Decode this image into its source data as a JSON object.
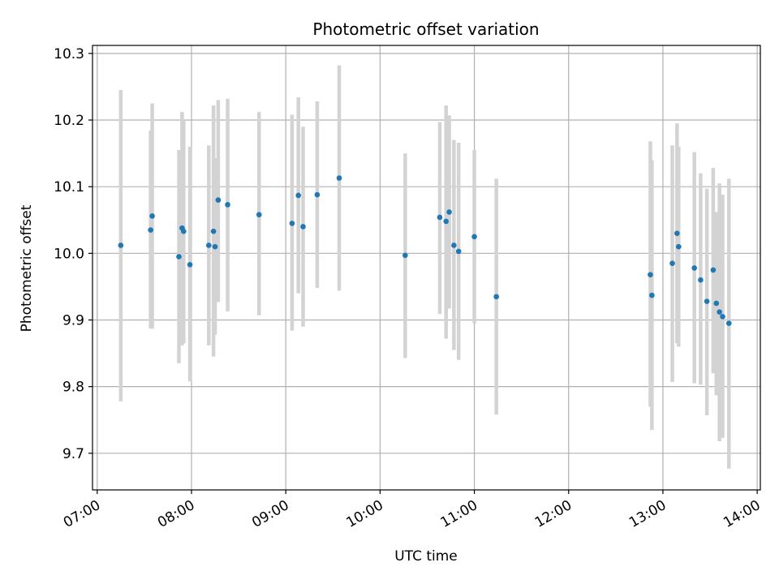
{
  "chart_data": {
    "type": "scatter",
    "title": "Photometric offset variation",
    "xlabel": "UTC time",
    "ylabel": "Photometric offset",
    "xlim": [
      "06:57",
      "14:02"
    ],
    "ylim": [
      9.645,
      10.312
    ],
    "grid": true,
    "x_tick_labels": [
      "07:00",
      "08:00",
      "09:00",
      "10:00",
      "11:00",
      "12:00",
      "13:00",
      "14:00"
    ],
    "y_tick_values": [
      9.7,
      9.8,
      9.9,
      10.0,
      10.1,
      10.2,
      10.3
    ],
    "y_tick_labels": [
      "9.7",
      "9.8",
      "9.9",
      "10.0",
      "10.1",
      "10.2",
      "10.3"
    ],
    "colors": {
      "point": "#1f77b4",
      "errorbar": "#d3d3d3",
      "grid": "#b0b0b0"
    },
    "points": [
      {
        "time": "07:15",
        "y": 10.012,
        "lo": 9.778,
        "hi": 10.245
      },
      {
        "time": "07:34",
        "y": 10.035,
        "lo": 9.887,
        "hi": 10.184
      },
      {
        "time": "07:35",
        "y": 10.056,
        "lo": 9.887,
        "hi": 10.225
      },
      {
        "time": "07:52",
        "y": 9.995,
        "lo": 9.835,
        "hi": 10.155
      },
      {
        "time": "07:54",
        "y": 10.038,
        "lo": 9.862,
        "hi": 10.212
      },
      {
        "time": "07:55",
        "y": 10.033,
        "lo": 9.865,
        "hi": 10.2
      },
      {
        "time": "07:59",
        "y": 9.983,
        "lo": 9.808,
        "hi": 10.16
      },
      {
        "time": "08:11",
        "y": 10.012,
        "lo": 9.862,
        "hi": 10.162
      },
      {
        "time": "08:14",
        "y": 10.033,
        "lo": 9.845,
        "hi": 10.222
      },
      {
        "time": "08:15",
        "y": 10.01,
        "lo": 9.878,
        "hi": 10.143
      },
      {
        "time": "08:17",
        "y": 10.08,
        "lo": 9.927,
        "hi": 10.23
      },
      {
        "time": "08:23",
        "y": 10.073,
        "lo": 9.913,
        "hi": 10.232
      },
      {
        "time": "08:43",
        "y": 10.058,
        "lo": 9.907,
        "hi": 10.212
      },
      {
        "time": "09:04",
        "y": 10.045,
        "lo": 9.884,
        "hi": 10.208
      },
      {
        "time": "09:08",
        "y": 10.087,
        "lo": 9.94,
        "hi": 10.234
      },
      {
        "time": "09:11",
        "y": 10.04,
        "lo": 9.89,
        "hi": 10.19
      },
      {
        "time": "09:20",
        "y": 10.088,
        "lo": 9.948,
        "hi": 10.228
      },
      {
        "time": "09:34",
        "y": 10.113,
        "lo": 9.944,
        "hi": 10.282
      },
      {
        "time": "10:16",
        "y": 9.997,
        "lo": 9.843,
        "hi": 10.15
      },
      {
        "time": "10:38",
        "y": 10.054,
        "lo": 9.909,
        "hi": 10.197
      },
      {
        "time": "10:42",
        "y": 10.048,
        "lo": 9.872,
        "hi": 10.222
      },
      {
        "time": "10:44",
        "y": 10.062,
        "lo": 9.917,
        "hi": 10.207
      },
      {
        "time": "10:47",
        "y": 10.012,
        "lo": 9.855,
        "hi": 10.17
      },
      {
        "time": "10:50",
        "y": 10.003,
        "lo": 9.84,
        "hi": 10.166
      },
      {
        "time": "11:00",
        "y": 10.025,
        "lo": 9.895,
        "hi": 10.155
      },
      {
        "time": "11:14",
        "y": 9.935,
        "lo": 9.758,
        "hi": 10.112
      },
      {
        "time": "12:52",
        "y": 9.968,
        "lo": 9.77,
        "hi": 10.168
      },
      {
        "time": "12:53",
        "y": 9.937,
        "lo": 9.735,
        "hi": 10.14
      },
      {
        "time": "13:06",
        "y": 9.985,
        "lo": 9.807,
        "hi": 10.162
      },
      {
        "time": "13:09",
        "y": 10.03,
        "lo": 9.865,
        "hi": 10.195
      },
      {
        "time": "13:10",
        "y": 10.01,
        "lo": 9.86,
        "hi": 10.16
      },
      {
        "time": "13:20",
        "y": 9.978,
        "lo": 9.805,
        "hi": 10.152
      },
      {
        "time": "13:24",
        "y": 9.96,
        "lo": 9.803,
        "hi": 10.12
      },
      {
        "time": "13:28",
        "y": 9.928,
        "lo": 9.757,
        "hi": 10.097
      },
      {
        "time": "13:32",
        "y": 9.975,
        "lo": 9.82,
        "hi": 10.128
      },
      {
        "time": "13:34",
        "y": 9.925,
        "lo": 9.787,
        "hi": 10.062
      },
      {
        "time": "13:36",
        "y": 9.912,
        "lo": 9.718,
        "hi": 10.105
      },
      {
        "time": "13:38",
        "y": 9.905,
        "lo": 9.723,
        "hi": 10.088
      },
      {
        "time": "13:42",
        "y": 9.895,
        "lo": 9.677,
        "hi": 10.112
      }
    ]
  }
}
